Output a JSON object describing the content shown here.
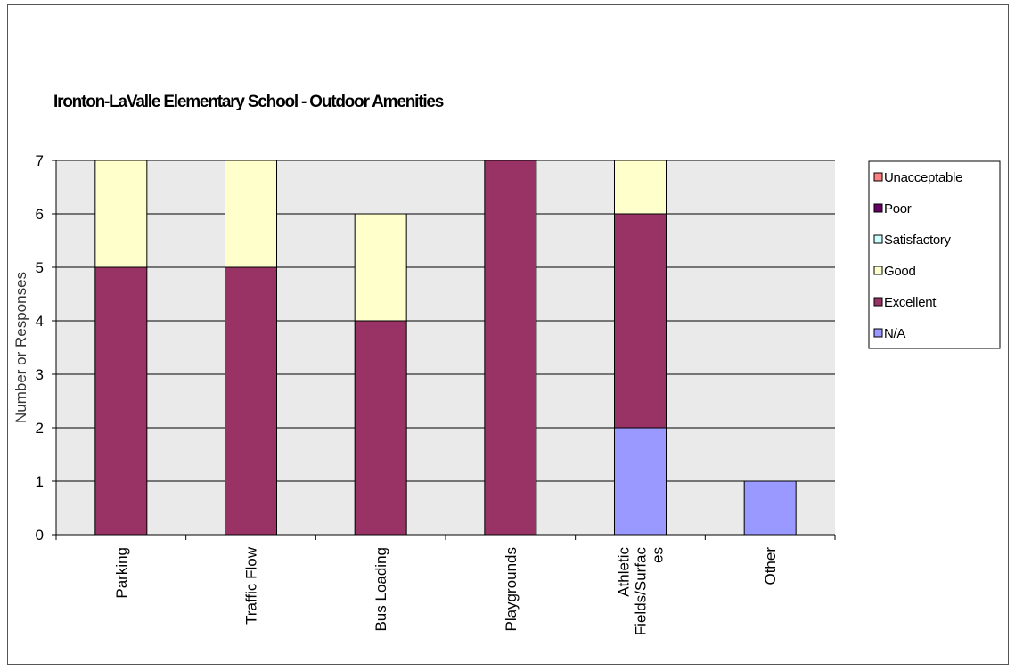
{
  "chart_data": {
    "type": "bar",
    "stacked": true,
    "title": "Ironton-LaValle Elementary School - Outdoor Amenities",
    "xlabel": "",
    "ylabel": "Number or Responses",
    "ylim": [
      0,
      7
    ],
    "yticks": [
      "0",
      "1",
      "2",
      "3",
      "4",
      "5",
      "6",
      "7"
    ],
    "grid": true,
    "legend_position": "right",
    "categories": [
      [
        "Parking"
      ],
      [
        "Traffic Flow"
      ],
      [
        "Bus Loading"
      ],
      [
        "Playgrounds"
      ],
      [
        "Athletic",
        "Fields/Surfac",
        "es"
      ],
      [
        "Other"
      ]
    ],
    "series": [
      {
        "name": "N/A",
        "color": "#9999ff",
        "values": [
          0,
          0,
          0,
          0,
          2,
          1
        ]
      },
      {
        "name": "Excellent",
        "color": "#993366",
        "values": [
          5,
          5,
          4,
          7,
          4,
          0
        ]
      },
      {
        "name": "Good",
        "color": "#ffffcc",
        "values": [
          2,
          2,
          2,
          0,
          1,
          0
        ]
      },
      {
        "name": "Satisfactory",
        "color": "#ccffff",
        "values": [
          0,
          0,
          0,
          0,
          0,
          0
        ]
      },
      {
        "name": "Poor",
        "color": "#660066",
        "values": [
          0,
          0,
          0,
          0,
          0,
          0
        ]
      },
      {
        "name": "Unacceptable",
        "color": "#ff8080",
        "values": [
          0,
          0,
          0,
          0,
          0,
          0
        ]
      }
    ],
    "legend_order": [
      "Unacceptable",
      "Poor",
      "Satisfactory",
      "Good",
      "Excellent",
      "N/A"
    ],
    "plot_background": "#eaeaea"
  }
}
